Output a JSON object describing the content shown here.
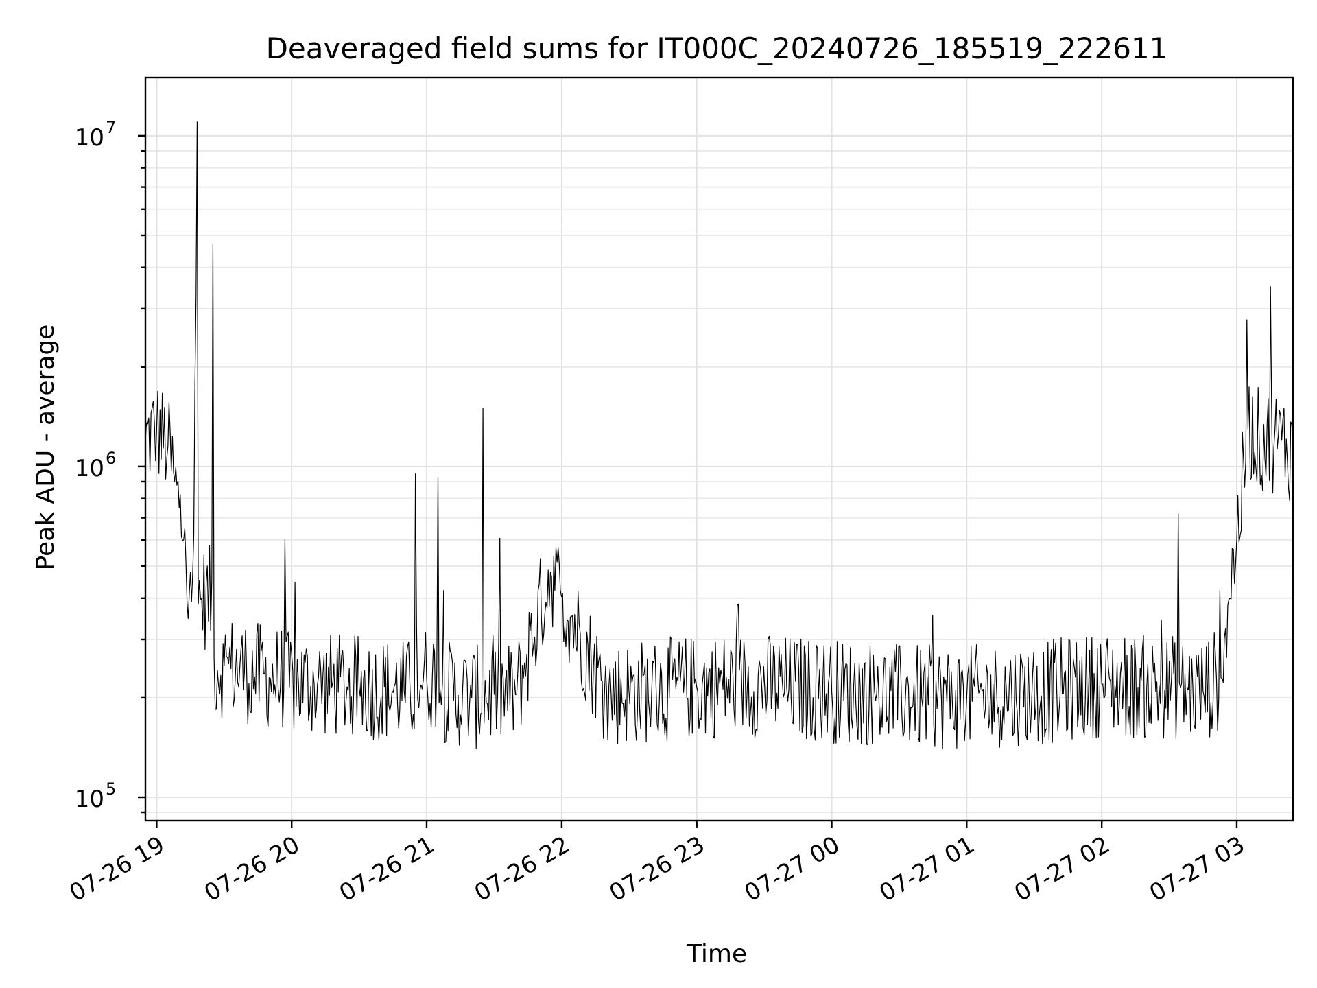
{
  "chart_data": {
    "type": "line",
    "title": "Deaveraged field sums for IT000C_20240726_185519_222611",
    "xlabel": "Time",
    "ylabel": "Peak ADU - average",
    "yscale": "log",
    "ylim": [
      85000,
      15000000
    ],
    "xlim": [
      "2024-07-26 18:55",
      "2024-07-27 03:25"
    ],
    "grid": true,
    "legend": "none",
    "line_color": "#000000",
    "x_ticks": [
      {
        "t": "2024-07-26 19:00",
        "label": "07-26 19"
      },
      {
        "t": "2024-07-26 20:00",
        "label": "07-26 20"
      },
      {
        "t": "2024-07-26 21:00",
        "label": "07-26 21"
      },
      {
        "t": "2024-07-26 22:00",
        "label": "07-26 22"
      },
      {
        "t": "2024-07-26 23:00",
        "label": "07-26 23"
      },
      {
        "t": "2024-07-27 00:00",
        "label": "07-27 00"
      },
      {
        "t": "2024-07-27 01:00",
        "label": "07-27 01"
      },
      {
        "t": "2024-07-27 02:00",
        "label": "07-27 02"
      },
      {
        "t": "2024-07-27 03:00",
        "label": "07-27 03"
      }
    ],
    "y_ticks": [
      {
        "value": 100000,
        "base": "10",
        "exp": "5"
      },
      {
        "value": 1000000,
        "base": "10",
        "exp": "6"
      },
      {
        "value": 10000000,
        "base": "10",
        "exp": "7"
      }
    ],
    "series": [
      {
        "x": [
          "2024-07-26 18:55",
          "2024-07-26 19:00",
          "2024-07-26 19:05",
          "2024-07-26 19:08",
          "2024-07-26 19:10",
          "2024-07-26 19:12",
          "2024-07-26 19:13",
          "2024-07-26 19:15",
          "2024-07-26 19:17",
          "2024-07-26 19:18",
          "2024-07-26 19:20",
          "2024-07-26 19:25",
          "2024-07-26 19:30",
          "2024-07-26 19:40",
          "2024-07-26 19:50",
          "2024-07-26 19:57",
          "2024-07-26 20:10",
          "2024-07-26 20:30",
          "2024-07-26 20:50",
          "2024-07-26 20:55",
          "2024-07-26 21:00",
          "2024-07-26 21:05",
          "2024-07-26 21:06",
          "2024-07-26 21:20",
          "2024-07-26 21:25",
          "2024-07-26 21:40",
          "2024-07-26 21:55",
          "2024-07-26 22:20",
          "2024-07-26 22:40",
          "2024-07-26 23:00",
          "2024-07-26 23:20",
          "2024-07-26 23:40",
          "2024-07-27 00:00",
          "2024-07-27 00:20",
          "2024-07-27 00:40",
          "2024-07-27 01:00",
          "2024-07-27 01:20",
          "2024-07-27 01:40",
          "2024-07-27 02:00",
          "2024-07-27 02:20",
          "2024-07-27 02:34",
          "2024-07-27 02:45",
          "2024-07-27 02:53",
          "2024-07-27 02:56",
          "2024-07-27 03:00",
          "2024-07-27 03:05",
          "2024-07-27 03:10",
          "2024-07-27 03:15",
          "2024-07-27 03:20",
          "2024-07-27 03:25"
        ],
        "y": [
          1200000,
          1300000,
          1150000,
          900000,
          750000,
          600000,
          520000,
          480000,
          1800000,
          11000000,
          400000,
          4700000,
          250000,
          240000,
          230000,
          600000,
          220000,
          215000,
          210000,
          950000,
          230000,
          930000,
          210000,
          200000,
          1500000,
          205000,
          480000,
          205000,
          210000,
          215000,
          220000,
          215000,
          210000,
          205000,
          200000,
          200000,
          205000,
          210000,
          220000,
          215000,
          720000,
          210000,
          230000,
          380000,
          600000,
          1300000,
          1200000,
          3500000,
          1200000,
          1100000
        ]
      }
    ]
  }
}
